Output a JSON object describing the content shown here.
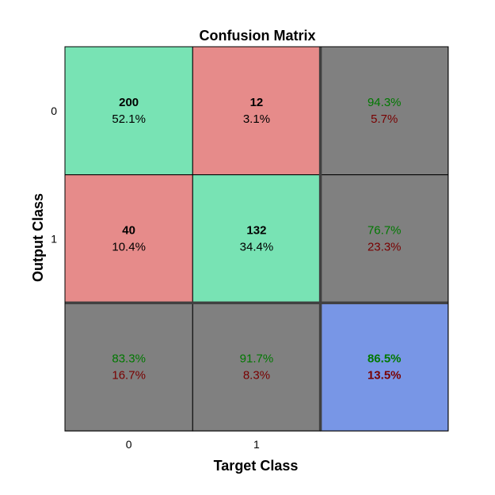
{
  "chart_data": {
    "type": "heatmap",
    "title": "Confusion Matrix",
    "xlabel": "Target Class",
    "ylabel": "Output Class",
    "x_ticks": [
      "0",
      "1"
    ],
    "y_ticks": [
      "0",
      "1"
    ],
    "counts": [
      [
        200,
        12
      ],
      [
        40,
        132
      ]
    ],
    "percent_of_total": [
      "52.1%",
      "3.1%",
      "10.4%",
      "34.4%"
    ],
    "row_summary": [
      {
        "correct": "94.3%",
        "incorrect": "5.7%"
      },
      {
        "correct": "76.7%",
        "incorrect": "23.3%"
      }
    ],
    "col_summary": [
      {
        "correct": "83.3%",
        "incorrect": "16.7%"
      },
      {
        "correct": "91.7%",
        "incorrect": "8.3%"
      }
    ],
    "overall": {
      "correct": "86.5%",
      "incorrect": "13.5%"
    },
    "colors": {
      "correct_cell": "#78e3b4",
      "incorrect_cell": "#e68b8a",
      "summary_cell": "#808080",
      "overall_cell": "#7896e6",
      "correct_text": "#007800",
      "incorrect_text": "#780000"
    }
  }
}
